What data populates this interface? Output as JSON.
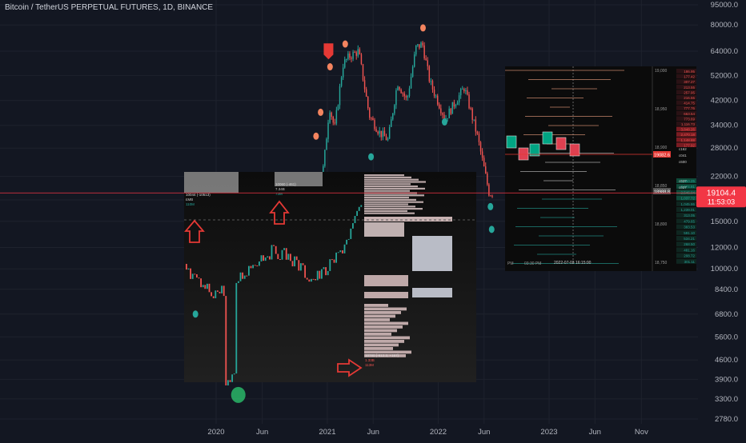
{
  "header": {
    "symbol_title": "Bitcoin / TetherUS PERPETUAL FUTURES, 1D, BINANCE"
  },
  "colors": {
    "bg": "#131722",
    "up": "#26a69a",
    "down": "#ef5350",
    "price_line": "#f23645",
    "axis_text": "#b2b5be",
    "grid": "#1e222d",
    "inset_bg": "#0b0b0b"
  },
  "price_badge": {
    "price": "19104.4",
    "countdown": "11:53:03"
  },
  "chart_data": {
    "type": "candlestick",
    "title": "Bitcoin / TetherUS PERPETUAL FUTURES, 1D, BINANCE",
    "y_scale": "log",
    "y_ticks": [
      "95000.0",
      "80000.0",
      "64000.0",
      "52000.0",
      "42000.0",
      "34000.0",
      "28000.0",
      "22000.0",
      "18000.0",
      "15000.0",
      "12000.0",
      "10000.0",
      "8400.0",
      "6800.0",
      "5600.0",
      "4600.0",
      "3900.0",
      "3300.0",
      "2780.0"
    ],
    "y_tick_values": [
      95000,
      80000,
      64000,
      52000,
      42000,
      34000,
      28000,
      22000,
      18000,
      15000,
      12000,
      10000,
      8400,
      6800,
      5600,
      4600,
      3900,
      3300,
      2780
    ],
    "x_ticks": [
      "2020",
      "Jun",
      "2021",
      "Jun",
      "2022",
      "Jun",
      "2023",
      "Jun",
      "Nov"
    ],
    "x_tick_dates": [
      "2020-01-01",
      "2020-06-01",
      "2021-01-01",
      "2021-06-01",
      "2022-01-01",
      "2022-06-01",
      "2023-01-01",
      "2023-06-01",
      "2023-11-01"
    ],
    "ylim": [
      2600,
      95000
    ],
    "last_price": 19104.4,
    "close_path": [
      [
        "2019-10-20",
        8300
      ],
      [
        "2019-11-10",
        8700
      ],
      [
        "2019-11-25",
        7200
      ],
      [
        "2019-12-18",
        6700
      ],
      [
        "2020-01-10",
        7900
      ],
      [
        "2020-02-14",
        10200
      ],
      [
        "2020-03-05",
        9000
      ],
      [
        "2020-03-13",
        4400
      ],
      [
        "2020-04-01",
        6600
      ],
      [
        "2020-05-01",
        8800
      ],
      [
        "2020-06-01",
        9600
      ],
      [
        "2020-07-15",
        9200
      ],
      [
        "2020-08-15",
        11800
      ],
      [
        "2020-10-01",
        10800
      ],
      [
        "2020-11-05",
        15500
      ],
      [
        "2020-12-01",
        19000
      ],
      [
        "2020-12-20",
        24000
      ],
      [
        "2021-01-08",
        40000
      ],
      [
        "2021-01-25",
        33000
      ],
      [
        "2021-02-21",
        57000
      ],
      [
        "2021-03-13",
        61000
      ],
      [
        "2021-04-14",
        64000
      ],
      [
        "2021-05-19",
        37000
      ],
      [
        "2021-06-22",
        32000
      ],
      [
        "2021-07-20",
        30000
      ],
      [
        "2021-08-20",
        49000
      ],
      [
        "2021-09-20",
        42000
      ],
      [
        "2021-10-20",
        66000
      ],
      [
        "2021-11-10",
        68000
      ],
      [
        "2021-12-05",
        49000
      ],
      [
        "2022-01-24",
        36000
      ],
      [
        "2022-03-28",
        47000
      ],
      [
        "2022-05-10",
        31000
      ],
      [
        "2022-06-18",
        19000
      ],
      [
        "2022-06-28",
        19104
      ]
    ],
    "candle_count": 180,
    "signals": [
      {
        "date": "2021-01-05",
        "price": 63000,
        "type": "sell",
        "color": "#ef5350"
      },
      {
        "date": "2021-01-10",
        "price": 56000,
        "type": "sell",
        "color": "#f4845f"
      },
      {
        "date": "2020-12-10",
        "price": 38000,
        "type": "sell",
        "color": "#f4845f"
      },
      {
        "date": "2020-11-25",
        "price": 31000,
        "type": "sell",
        "color": "#f4845f"
      },
      {
        "date": "2021-03-01",
        "price": 68000,
        "type": "sell",
        "color": "#f4845f"
      },
      {
        "date": "2021-11-12",
        "price": 78000,
        "type": "sell",
        "color": "#f4845f"
      },
      {
        "date": "2021-05-25",
        "price": 26000,
        "type": "buy",
        "color": "#26a69a"
      },
      {
        "date": "2022-01-22",
        "price": 35000,
        "type": "buy",
        "color": "#26a69a"
      },
      {
        "date": "2022-06-22",
        "price": 17000,
        "type": "buy",
        "color": "#26a69a"
      },
      {
        "date": "2022-06-26",
        "price": 14000,
        "type": "buy",
        "color": "#26a69a"
      },
      {
        "date": "2020-03-14",
        "price": 3300,
        "type": "buy",
        "color": "#2ecc71"
      },
      {
        "date": "2019-10-25",
        "price": 6800,
        "type": "buy",
        "color": "#26a69a"
      }
    ],
    "inset_left": {
      "labels": [
        "10044 (-10513)",
        "£MB",
        "110M",
        "10060 (-461)",
        "7.34B",
        "73M",
        "10780 (-612.3, +167)",
        "1.33B",
        "113M"
      ]
    },
    "inset_right": {
      "y_ticks": [
        "19,000",
        "18,950",
        "18,900",
        "18,850",
        "18,800",
        "18,750"
      ],
      "time_label": "2022-07-03 16:15:00",
      "price_marker": "19082.6",
      "price_marker_low": "18988.8",
      "x_labels": [
        "PM",
        "03:30 PM"
      ],
      "dom_asks": [
        "186.95",
        "177.42",
        "307.27",
        "213.55",
        "257.95",
        "216.55",
        "414.75",
        "777.76",
        "663.54",
        "773.69",
        "1,116.73",
        "3,848.26",
        "2,470.18",
        "1,148.88",
        "177.92"
      ],
      "dom_bids": [
        "1,450.25",
        "2,674.81",
        "2,546.04",
        "1,037.72",
        "1,045.86",
        "1,239.01",
        "313.05",
        "479.65",
        "383.53",
        "591.10",
        "534.21",
        "268.50",
        "481.16",
        "208.72",
        "301.11"
      ],
      "side_labels": [
        "ᴄ162",
        "ᴄ041",
        "ᴄ600",
        "ᴄ037",
        "ᴄ037"
      ]
    }
  }
}
